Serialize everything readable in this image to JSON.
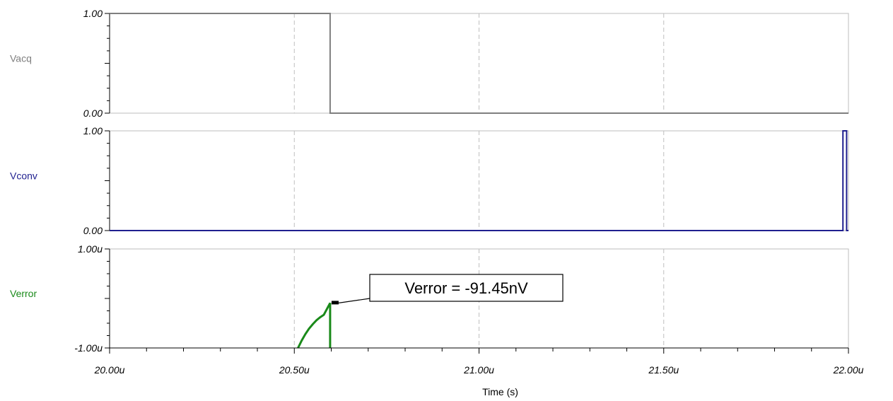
{
  "chart_data": {
    "type": "line",
    "x_unit_scale": "u",
    "xlabel": "Time (s)",
    "xlim": [
      20.0,
      22.0
    ],
    "x_ticks": [
      {
        "value": 20.0,
        "label": "20.00u"
      },
      {
        "value": 20.5,
        "label": "20.50u"
      },
      {
        "value": 21.0,
        "label": "21.00u"
      },
      {
        "value": 21.5,
        "label": "21.50u"
      },
      {
        "value": 22.0,
        "label": "22.00u"
      }
    ],
    "grid": true,
    "panels": [
      {
        "name": "Vacq",
        "color": "#7f7f7f",
        "ylim": [
          0,
          1
        ],
        "y_ticks": [
          {
            "value": 1,
            "label": "1.00"
          },
          {
            "value": 0,
            "label": "0.00"
          }
        ],
        "series": [
          {
            "name": "Vacq",
            "points": [
              [
                20.0,
                1
              ],
              [
                20.597,
                1
              ],
              [
                20.597,
                0
              ],
              [
                22.0,
                0
              ]
            ]
          }
        ]
      },
      {
        "name": "Vconv",
        "color": "#1f1f8f",
        "ylim": [
          0,
          1
        ],
        "y_ticks": [
          {
            "value": 1,
            "label": "1.00"
          },
          {
            "value": 0,
            "label": "0.00"
          }
        ],
        "series": [
          {
            "name": "Vconv",
            "points": [
              [
                20.0,
                0
              ],
              [
                21.985,
                0
              ],
              [
                21.985,
                1
              ],
              [
                21.995,
                1
              ],
              [
                21.995,
                0
              ],
              [
                22.0,
                0
              ]
            ]
          }
        ]
      },
      {
        "name": "Verror",
        "color": "#1a8a1a",
        "ylim": [
          -1.0,
          1.0
        ],
        "y_ticks": [
          {
            "value": 1,
            "label": "1.00u"
          },
          {
            "value": -1,
            "label": "-1.00u"
          }
        ],
        "series": [
          {
            "name": "Verror",
            "points": [
              [
                20.51,
                -1.0
              ],
              [
                20.52,
                -0.85
              ],
              [
                20.53,
                -0.72
              ],
              [
                20.54,
                -0.61
              ],
              [
                20.55,
                -0.52
              ],
              [
                20.56,
                -0.44
              ],
              [
                20.57,
                -0.38
              ],
              [
                20.58,
                -0.33
              ],
              [
                20.597,
                -0.09145
              ],
              [
                20.597,
                -1.0
              ]
            ]
          }
        ],
        "annotation": {
          "text": "Verror = -91.45nV",
          "x": 20.597,
          "y": -0.09145
        }
      }
    ]
  }
}
